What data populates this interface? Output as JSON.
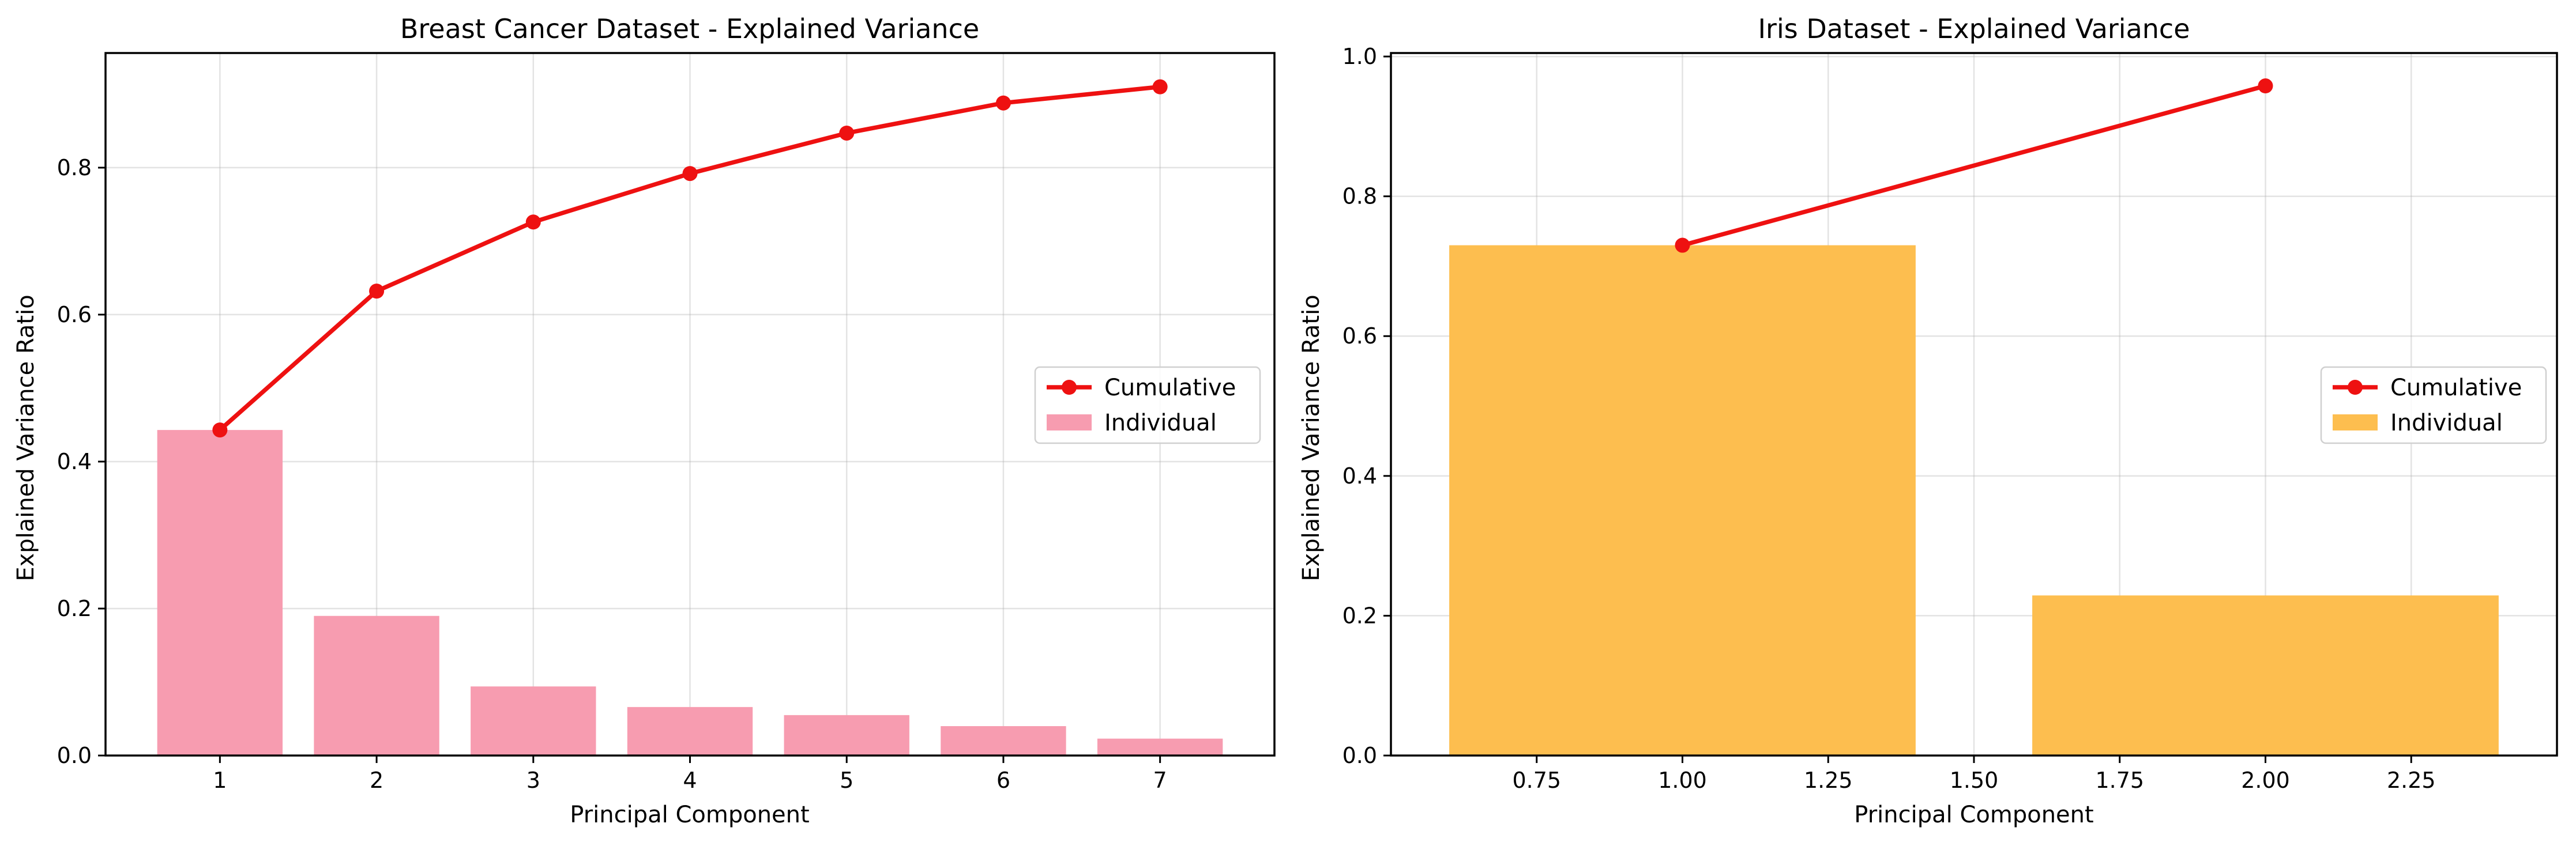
{
  "chart_data": [
    {
      "type": "bar",
      "title": "Breast Cancer Dataset - Explained Variance",
      "xlabel": "Principal Component",
      "ylabel": "Explained Variance Ratio",
      "x": [
        1,
        2,
        3,
        4,
        5,
        6,
        7
      ],
      "xlim": [
        0.27,
        7.73
      ],
      "ylim": [
        0,
        0.956
      ],
      "xticks": [
        1,
        2,
        3,
        4,
        5,
        6,
        7
      ],
      "xtick_labels": [
        "1",
        "2",
        "3",
        "4",
        "5",
        "6",
        "7"
      ],
      "yticks": [
        0,
        0.2,
        0.4,
        0.6,
        0.8
      ],
      "ytick_labels": [
        "0.0",
        "0.2",
        "0.4",
        "0.6",
        "0.8"
      ],
      "bar_width": 0.8,
      "grid": true,
      "legend_position": "center-right",
      "series": [
        {
          "name": "Cumulative",
          "kind": "line",
          "color": "#ee1111",
          "values": [
            0.443,
            0.632,
            0.726,
            0.792,
            0.847,
            0.888,
            0.91
          ]
        },
        {
          "name": "Individual",
          "kind": "bar",
          "color": "#f79cb0",
          "values": [
            0.443,
            0.19,
            0.094,
            0.066,
            0.055,
            0.04,
            0.023
          ]
        }
      ]
    },
    {
      "type": "bar",
      "title": "Iris Dataset - Explained Variance",
      "xlabel": "Principal Component",
      "ylabel": "Explained Variance Ratio",
      "x": [
        1,
        2
      ],
      "xlim": [
        0.5,
        2.5
      ],
      "ylim": [
        0,
        1.005
      ],
      "xticks": [
        0.75,
        1.0,
        1.25,
        1.5,
        1.75,
        2.0,
        2.25
      ],
      "xtick_labels": [
        "0.75",
        "1.00",
        "1.25",
        "1.50",
        "1.75",
        "2.00",
        "2.25"
      ],
      "yticks": [
        0,
        0.2,
        0.4,
        0.6,
        0.8,
        1.0
      ],
      "ytick_labels": [
        "0.0",
        "0.2",
        "0.4",
        "0.6",
        "0.8",
        "1.0"
      ],
      "bar_width": 0.8,
      "grid": true,
      "legend_position": "center-right",
      "series": [
        {
          "name": "Cumulative",
          "kind": "line",
          "color": "#ee1111",
          "values": [
            0.73,
            0.958
          ]
        },
        {
          "name": "Individual",
          "kind": "bar",
          "color": "#fdbe4f",
          "values": [
            0.73,
            0.229
          ]
        }
      ]
    }
  ]
}
